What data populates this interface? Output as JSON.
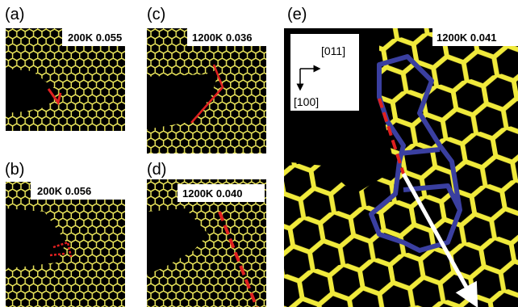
{
  "panels": [
    {
      "label": "(a)",
      "caption": "200K 0.055"
    },
    {
      "label": "(b)",
      "caption": "200K 0.056"
    },
    {
      "label": "(c)",
      "caption": "1200K 0.036"
    },
    {
      "label": "(d)",
      "caption": "1200K 0.040"
    },
    {
      "label": "(e)",
      "caption": "1200K 0.041",
      "axes": [
        "[011]",
        "[100]"
      ]
    }
  ]
}
